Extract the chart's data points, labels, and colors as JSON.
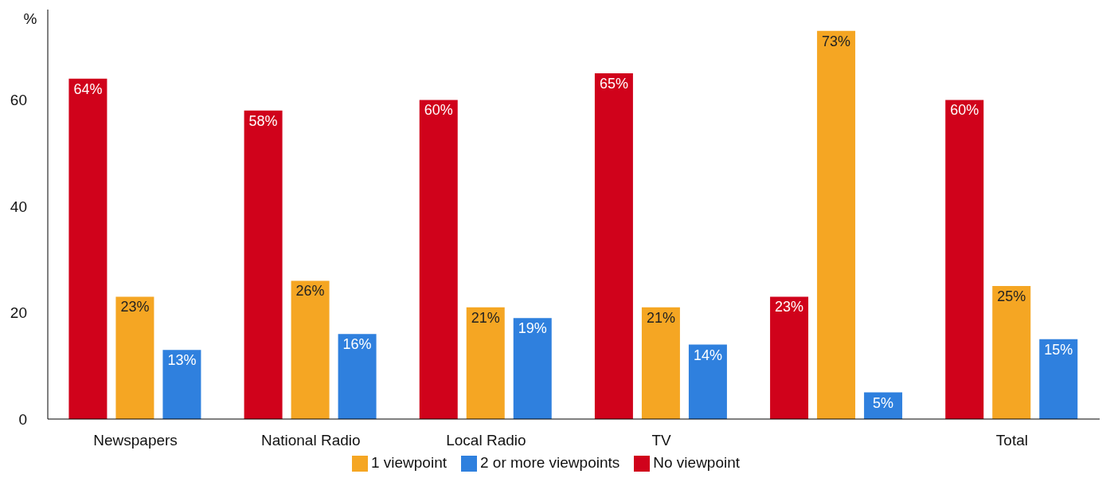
{
  "chart_data": {
    "type": "bar",
    "ylabel": "%",
    "categories": [
      "Newspapers",
      "National Radio",
      "Local Radio",
      "TV",
      null,
      "Total"
    ],
    "series": [
      {
        "name": "No viewpoint",
        "color": "#d0021b",
        "values": [
          64,
          58,
          60,
          65,
          23,
          60
        ],
        "value_labels": [
          "64%",
          "58%",
          "60%",
          "65%",
          "23%",
          "60%"
        ]
      },
      {
        "name": "1 viewpoint",
        "color": "#f5a623",
        "values": [
          23,
          26,
          21,
          21,
          73,
          25
        ],
        "value_labels": [
          "23%",
          "26%",
          "21%",
          "21%",
          "73%",
          "25%"
        ]
      },
      {
        "name": "2 or more viewpoints",
        "color": "#2f80de",
        "values": [
          13,
          16,
          19,
          14,
          5,
          15
        ],
        "value_labels": [
          "13%",
          "16%",
          "19%",
          "14%",
          "5%",
          "15%"
        ]
      }
    ],
    "ylim": [
      0,
      77
    ],
    "yticks": [
      0,
      20,
      40,
      60
    ],
    "grid": false,
    "legend": "bottom"
  }
}
